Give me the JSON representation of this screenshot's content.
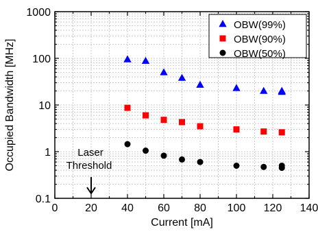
{
  "chart_data": {
    "type": "scatter",
    "xlabel": "Current [mA]",
    "ylabel": "Occupied Bandwidth [MHz]",
    "xlim": [
      0,
      140
    ],
    "ylim": [
      0.1,
      1000
    ],
    "yscale": "log",
    "grid": true,
    "legend_position": "top-right",
    "x_ticks": [
      0,
      20,
      40,
      60,
      80,
      100,
      120,
      140
    ],
    "y_ticks": [
      0.1,
      1,
      10,
      100,
      1000
    ],
    "x_tick_labels": [
      "0",
      "20",
      "40",
      "60",
      "80",
      "100",
      "120",
      "140"
    ],
    "y_tick_labels": [
      "0.1",
      "1",
      "10",
      "100",
      "1000"
    ],
    "series": [
      {
        "name": "OBW(99%)",
        "marker": "triangle",
        "color": "#0000ff",
        "points": [
          [
            40,
            95
          ],
          [
            50,
            88
          ],
          [
            60,
            50
          ],
          [
            70,
            38
          ],
          [
            80,
            27
          ],
          [
            100,
            23
          ],
          [
            115,
            20
          ],
          [
            125,
            20
          ],
          [
            125,
            19
          ]
        ]
      },
      {
        "name": "OBW(90%)",
        "marker": "square",
        "color": "#ff0000",
        "points": [
          [
            40,
            8.7
          ],
          [
            50,
            6.0
          ],
          [
            60,
            4.8
          ],
          [
            70,
            4.3
          ],
          [
            80,
            3.5
          ],
          [
            100,
            3.0
          ],
          [
            115,
            2.7
          ],
          [
            125,
            2.6
          ]
        ]
      },
      {
        "name": "OBW(50%)",
        "marker": "circle",
        "color": "#000000",
        "points": [
          [
            40,
            1.45
          ],
          [
            50,
            1.05
          ],
          [
            60,
            0.82
          ],
          [
            70,
            0.68
          ],
          [
            80,
            0.6
          ],
          [
            100,
            0.5
          ],
          [
            115,
            0.47
          ],
          [
            125,
            0.5
          ],
          [
            125,
            0.45
          ]
        ]
      }
    ],
    "annotations": [
      {
        "lines": [
          "Laser",
          "Threshold"
        ],
        "arrow_x": 20
      }
    ]
  }
}
